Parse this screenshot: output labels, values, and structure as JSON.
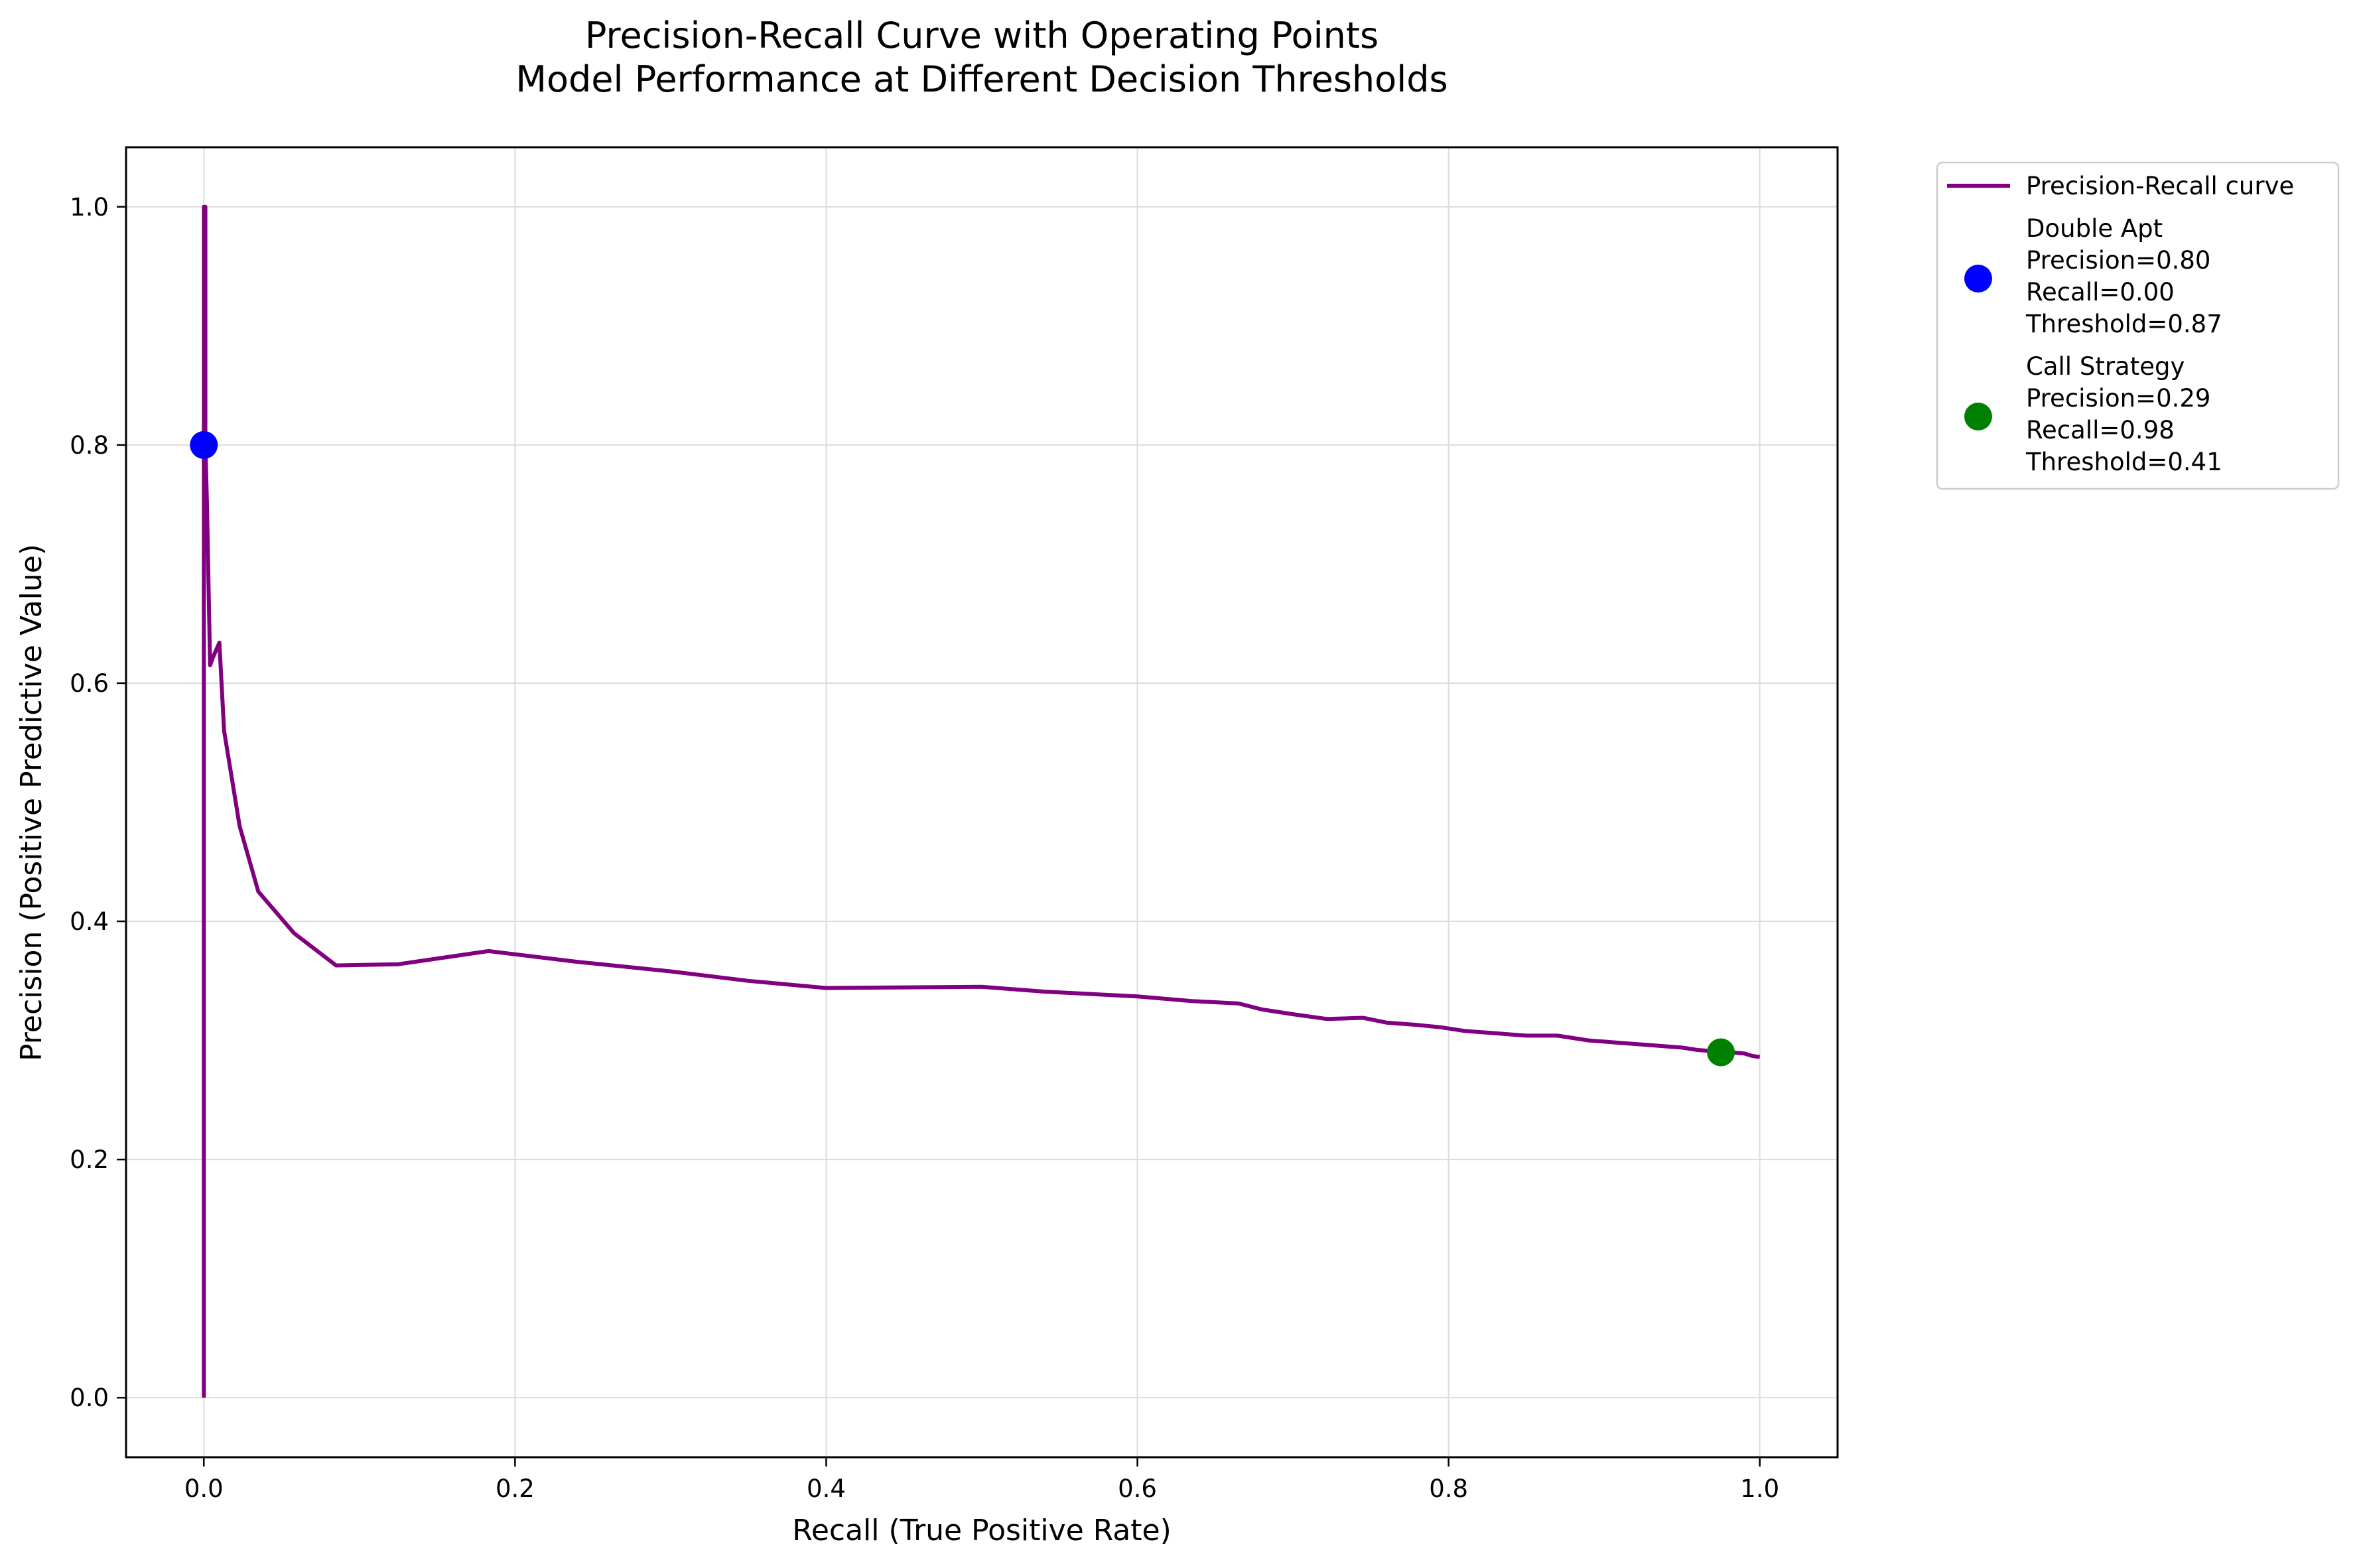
{
  "chart_data": {
    "type": "line",
    "title": "Precision-Recall Curve with Operating Points",
    "subtitle": "Model Performance at Different Decision Thresholds",
    "xlabel": "Recall (True Positive Rate)",
    "ylabel": "Precision (Positive Predictive Value)",
    "xlim": [
      -0.05,
      1.05
    ],
    "ylim": [
      -0.05,
      1.05
    ],
    "x_ticks": [
      "0.0",
      "0.2",
      "0.4",
      "0.6",
      "0.8",
      "1.0"
    ],
    "y_ticks": [
      "0.0",
      "0.2",
      "0.4",
      "0.6",
      "0.8",
      "1.0"
    ],
    "grid": true,
    "legend_position": "outside top-right",
    "series": [
      {
        "name": "Precision-Recall curve",
        "color": "#800080",
        "x": [
          0.0,
          0.0,
          0.001,
          0.001,
          0.002,
          0.004,
          0.006,
          0.01,
          0.013,
          0.023,
          0.035,
          0.058,
          0.085,
          0.125,
          0.183,
          0.24,
          0.3,
          0.35,
          0.4,
          0.5,
          0.54,
          0.6,
          0.635,
          0.665,
          0.68,
          0.7,
          0.722,
          0.745,
          0.76,
          0.78,
          0.795,
          0.81,
          0.83,
          0.85,
          0.87,
          0.88,
          0.89,
          0.9,
          0.91,
          0.92,
          0.93,
          0.94,
          0.95,
          0.96,
          0.97,
          0.975,
          0.98,
          0.99,
          0.995,
          1.0
        ],
        "y": [
          0.0,
          1.0,
          1.0,
          0.8,
          0.75,
          0.615,
          0.622,
          0.634,
          0.56,
          0.48,
          0.425,
          0.39,
          0.363,
          0.364,
          0.375,
          0.366,
          0.358,
          0.35,
          0.344,
          0.345,
          0.341,
          0.337,
          0.333,
          0.331,
          0.326,
          0.322,
          0.318,
          0.319,
          0.315,
          0.313,
          0.311,
          0.308,
          0.306,
          0.304,
          0.304,
          0.302,
          0.3,
          0.299,
          0.298,
          0.297,
          0.296,
          0.295,
          0.294,
          0.292,
          0.291,
          0.29,
          0.29,
          0.289,
          0.287,
          0.286
        ]
      }
    ],
    "points": [
      {
        "name": "Double Apt",
        "color": "#0000ff",
        "x": 0.0,
        "y": 0.8,
        "precision_text": "Precision=0.80",
        "recall_text": "Recall=0.00",
        "threshold_text": "Threshold=0.87"
      },
      {
        "name": "Call Strategy",
        "color": "#008000",
        "x": 0.975,
        "y": 0.29,
        "precision_text": "Precision=0.29",
        "recall_text": "Recall=0.98",
        "threshold_text": "Threshold=0.41"
      }
    ]
  }
}
